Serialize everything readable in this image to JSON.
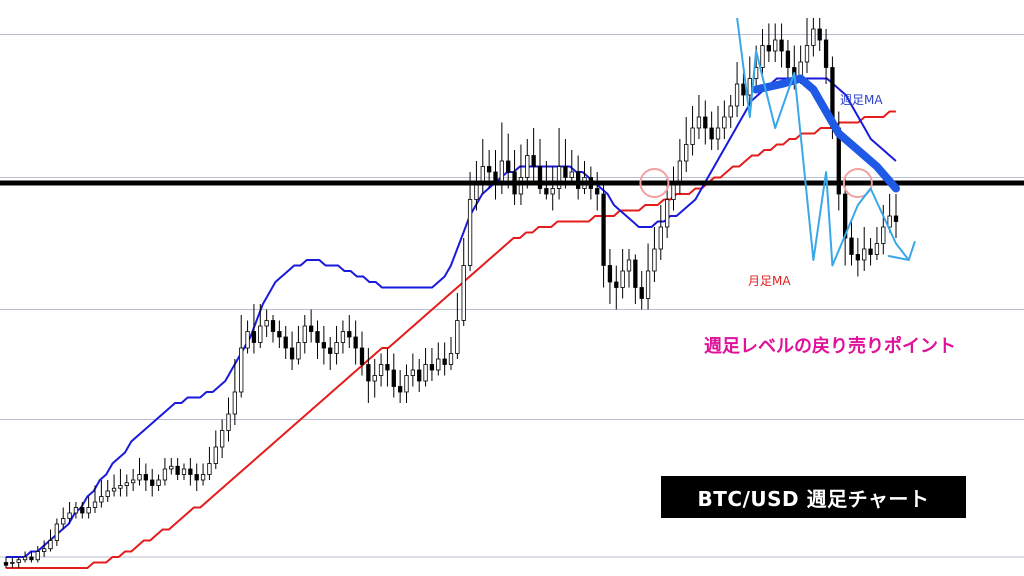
{
  "chart_data": {
    "type": "candlestick",
    "title": "BTC/USD 週足チャート",
    "annotation": "週足レベルの戻り売りポイント",
    "series_labels": {
      "weekly_ma": "週足MA",
      "monthly_ma": "月足MA"
    },
    "y_range": [
      0,
      100
    ],
    "grid_levels": [
      2,
      27,
      47,
      71,
      97
    ],
    "resistance_level": 70,
    "colors": {
      "weekly_ma": "#1a1adc",
      "monthly_ma": "#e51c1c",
      "resistance": "#000000",
      "highlight_circle": "#f2a0a0",
      "trend_drawn": "#1e5ae6",
      "arrow": "#3aa8e8",
      "callout": "#e0109a"
    },
    "candles": [
      [
        1,
        0.5,
        2,
        0
      ],
      [
        1,
        1,
        2,
        0
      ],
      [
        1,
        1.5,
        2,
        0
      ],
      [
        1.5,
        2,
        3,
        1
      ],
      [
        2,
        1.5,
        3,
        1
      ],
      [
        1.5,
        3,
        4,
        1
      ],
      [
        3,
        3.5,
        5,
        2
      ],
      [
        3.5,
        5,
        7,
        3
      ],
      [
        5,
        8,
        9,
        4
      ],
      [
        8,
        9,
        11,
        7
      ],
      [
        9,
        10,
        12,
        8
      ],
      [
        10,
        11,
        12,
        9
      ],
      [
        11,
        10,
        12,
        9
      ],
      [
        10,
        11,
        13,
        9
      ],
      [
        11,
        12,
        15,
        10
      ],
      [
        12,
        13,
        16,
        11
      ],
      [
        13,
        14,
        16,
        12
      ],
      [
        14,
        14.5,
        17,
        13
      ],
      [
        14.5,
        15,
        18,
        13
      ],
      [
        15,
        15.5,
        17,
        13
      ],
      [
        15.5,
        16,
        18,
        14
      ],
      [
        16,
        17,
        20,
        15
      ],
      [
        17,
        16,
        19,
        14
      ],
      [
        16,
        15,
        18,
        13
      ],
      [
        15,
        16,
        17,
        14
      ],
      [
        16,
        18,
        20,
        15
      ],
      [
        18,
        18.5,
        20,
        17
      ],
      [
        18.5,
        17,
        20,
        16
      ],
      [
        17,
        18,
        19,
        16
      ],
      [
        18,
        17,
        20,
        15
      ],
      [
        17,
        16,
        19,
        14
      ],
      [
        16,
        17,
        19,
        15
      ],
      [
        17,
        19,
        22,
        16
      ],
      [
        19,
        22,
        25,
        18
      ],
      [
        22,
        25,
        27,
        20
      ],
      [
        25,
        28,
        31,
        23
      ],
      [
        28,
        32,
        38,
        26
      ],
      [
        32,
        40,
        46,
        31
      ],
      [
        40,
        43,
        45,
        39
      ],
      [
        43,
        41,
        48,
        39
      ],
      [
        41,
        44,
        48,
        40
      ],
      [
        44,
        45,
        47,
        42
      ],
      [
        45,
        43,
        46,
        41
      ],
      [
        43,
        42,
        45,
        40
      ],
      [
        42,
        40,
        44,
        38
      ],
      [
        40,
        38,
        43,
        36
      ],
      [
        38,
        41,
        44,
        37
      ],
      [
        41,
        44,
        46,
        39
      ],
      [
        44,
        43,
        47,
        41
      ],
      [
        43,
        41,
        45,
        38
      ],
      [
        41,
        40,
        44,
        37
      ],
      [
        40,
        39,
        42,
        36
      ],
      [
        39,
        41,
        44,
        37
      ],
      [
        41,
        43,
        45,
        39
      ],
      [
        43,
        42,
        46,
        40
      ],
      [
        42,
        40,
        45,
        37
      ],
      [
        40,
        37,
        43,
        35
      ],
      [
        37,
        34,
        40,
        30
      ],
      [
        34,
        35,
        38,
        31
      ],
      [
        35,
        37,
        39,
        33
      ],
      [
        37,
        36,
        40,
        33
      ],
      [
        36,
        33,
        39,
        31
      ],
      [
        33,
        32,
        36,
        30
      ],
      [
        32,
        35,
        37,
        30
      ],
      [
        35,
        36,
        39,
        33
      ],
      [
        36,
        34,
        38,
        32
      ],
      [
        34,
        37,
        40,
        33
      ],
      [
        37,
        36,
        40,
        34
      ],
      [
        36,
        38,
        41,
        35
      ],
      [
        38,
        37,
        41,
        35
      ],
      [
        37,
        39,
        42,
        36
      ],
      [
        39,
        45,
        50,
        38
      ],
      [
        45,
        55,
        60,
        44
      ],
      [
        55,
        67,
        72,
        54
      ],
      [
        67,
        70,
        74,
        65
      ],
      [
        70,
        73,
        78,
        68
      ],
      [
        73,
        72,
        76,
        69
      ],
      [
        72,
        70,
        76,
        67
      ],
      [
        70,
        74,
        81,
        68
      ],
      [
        74,
        72,
        79,
        69
      ],
      [
        72,
        68,
        76,
        66
      ],
      [
        68,
        71,
        77,
        66
      ],
      [
        71,
        75,
        78,
        69
      ],
      [
        75,
        73,
        80,
        70
      ],
      [
        73,
        69,
        78,
        68
      ],
      [
        69,
        68,
        74,
        67
      ],
      [
        68,
        69,
        73,
        65
      ],
      [
        69,
        73,
        80,
        67
      ],
      [
        73,
        71,
        78,
        69
      ],
      [
        71,
        72,
        76,
        70
      ],
      [
        72,
        69,
        75,
        67
      ],
      [
        69,
        71,
        74,
        68
      ],
      [
        71,
        69,
        73,
        67
      ],
      [
        69,
        68,
        72,
        65
      ],
      [
        68,
        55,
        70,
        51
      ],
      [
        55,
        52,
        58,
        48
      ],
      [
        52,
        51,
        55,
        47
      ],
      [
        51,
        54,
        58,
        49
      ],
      [
        54,
        56,
        58,
        51
      ],
      [
        56,
        51,
        57,
        48
      ],
      [
        51,
        49,
        54,
        47
      ],
      [
        49,
        54,
        59,
        47
      ],
      [
        54,
        58,
        62,
        52
      ],
      [
        58,
        62,
        66,
        56
      ],
      [
        62,
        67,
        71,
        60
      ],
      [
        67,
        70,
        73,
        65
      ],
      [
        70,
        74,
        78,
        68
      ],
      [
        74,
        77,
        82,
        72
      ],
      [
        77,
        80,
        84,
        75
      ],
      [
        80,
        82,
        86,
        78
      ],
      [
        82,
        80,
        85,
        77
      ],
      [
        80,
        78,
        83,
        76
      ],
      [
        78,
        80,
        84,
        76
      ],
      [
        80,
        82,
        85,
        78
      ],
      [
        82,
        84,
        86,
        80
      ],
      [
        84,
        88,
        92,
        82
      ],
      [
        88,
        86,
        90,
        84
      ],
      [
        86,
        89,
        93,
        84
      ],
      [
        89,
        91,
        95,
        87
      ],
      [
        91,
        95,
        98,
        89
      ],
      [
        95,
        94,
        99,
        92
      ],
      [
        94,
        96,
        99,
        92
      ],
      [
        96,
        94,
        99,
        91
      ],
      [
        94,
        91,
        96,
        89
      ],
      [
        91,
        89,
        95,
        87
      ],
      [
        89,
        92,
        95,
        88
      ],
      [
        92,
        95,
        100,
        90
      ],
      [
        95,
        98,
        100,
        93
      ],
      [
        98,
        96,
        100,
        94
      ],
      [
        96,
        91,
        98,
        88
      ],
      [
        91,
        80,
        93,
        78
      ],
      [
        80,
        68,
        83,
        65
      ],
      [
        68,
        60,
        71,
        55
      ],
      [
        60,
        57,
        63,
        55
      ],
      [
        57,
        56,
        60,
        53
      ],
      [
        56,
        58,
        62,
        54
      ],
      [
        58,
        57,
        60,
        55
      ],
      [
        57,
        59,
        62,
        56
      ],
      [
        59,
        62,
        66,
        57
      ],
      [
        62,
        64,
        68,
        61
      ],
      [
        64,
        63,
        68,
        60
      ]
    ],
    "weekly_ma": [
      2,
      2,
      2,
      2,
      3,
      3,
      4,
      5,
      6,
      7,
      8,
      10,
      11,
      13,
      14,
      16,
      17,
      19,
      20,
      21,
      23,
      24,
      25,
      26,
      27,
      28,
      29,
      30,
      30,
      31,
      31,
      31,
      32,
      32,
      33,
      34,
      36,
      38,
      40,
      42,
      45,
      48,
      50,
      52,
      53,
      54,
      55,
      55,
      56,
      56,
      56,
      55,
      55,
      55,
      54,
      54,
      53,
      53,
      52,
      52,
      51,
      51,
      51,
      51,
      51,
      51,
      51,
      51,
      51,
      52,
      53,
      55,
      58,
      61,
      64,
      66,
      68,
      69,
      70,
      71,
      72,
      72,
      73,
      73,
      73,
      73,
      73,
      73,
      73,
      73,
      73,
      72,
      72,
      71,
      70,
      69,
      68,
      66,
      65,
      64,
      63,
      62,
      62,
      62,
      63,
      63,
      64,
      64,
      65,
      66,
      67,
      69,
      71,
      73,
      75,
      77,
      79,
      81,
      83,
      85,
      86,
      87,
      88,
      89,
      89,
      89,
      89,
      89,
      89,
      89,
      89,
      89,
      88,
      87,
      86,
      84,
      82,
      80,
      78,
      77,
      76,
      75,
      74
    ],
    "monthly_ma": [
      0,
      0,
      0,
      0,
      0,
      0,
      0,
      0,
      0,
      0,
      0,
      0,
      0,
      0,
      1,
      1,
      1,
      2,
      2,
      3,
      3,
      4,
      5,
      5,
      6,
      7,
      7,
      8,
      9,
      10,
      11,
      11,
      12,
      13,
      14,
      15,
      16,
      17,
      18,
      19,
      20,
      21,
      22,
      23,
      24,
      25,
      26,
      27,
      28,
      29,
      30,
      31,
      32,
      33,
      34,
      35,
      36,
      37,
      38,
      39,
      40,
      40,
      41,
      42,
      43,
      44,
      45,
      46,
      47,
      48,
      49,
      50,
      51,
      52,
      53,
      54,
      55,
      56,
      57,
      58,
      59,
      60,
      60,
      61,
      61,
      62,
      62,
      62,
      63,
      63,
      63,
      63,
      63,
      63,
      64,
      64,
      64,
      64,
      65,
      65,
      65,
      65,
      66,
      66,
      66,
      67,
      67,
      68,
      68,
      68,
      69,
      69,
      70,
      71,
      71,
      72,
      73,
      73,
      74,
      75,
      75,
      76,
      76,
      77,
      77,
      78,
      78,
      79,
      79,
      79,
      80,
      80,
      80,
      81,
      81,
      81,
      81,
      82,
      82,
      82,
      82,
      83,
      83
    ]
  }
}
